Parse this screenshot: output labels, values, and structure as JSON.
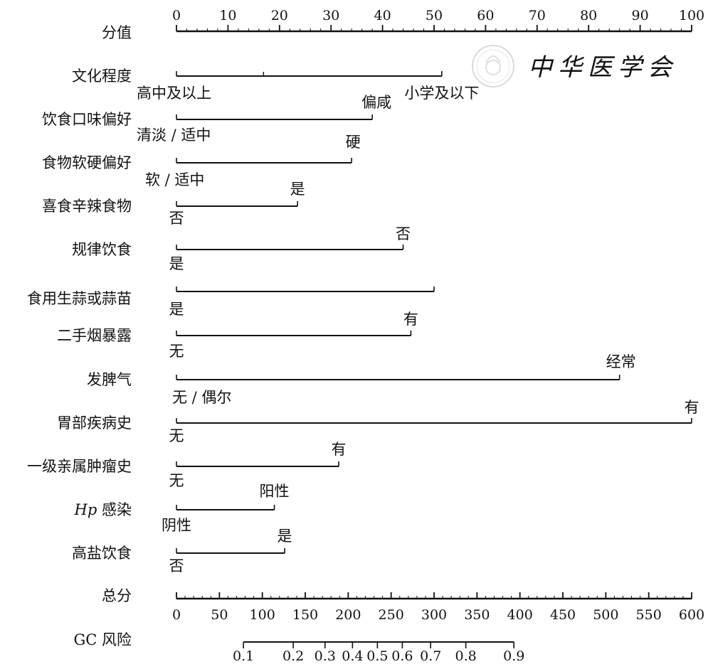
{
  "chart_data": {
    "type": "nomogram",
    "points_scale": {
      "label": "分值",
      "min": 0,
      "max": 100,
      "ticks": [
        0,
        10,
        20,
        30,
        40,
        50,
        60,
        70,
        80,
        90,
        100
      ]
    },
    "predictors": [
      {
        "name": "文化程度",
        "levels": [
          {
            "label": "高中及以上",
            "points": 0
          },
          {
            "label": "小学及以下",
            "points": 51.5
          }
        ],
        "midpoint_tick": 16.9
      },
      {
        "name": "饮食口味偏好",
        "levels": [
          {
            "label": "清淡 / 适中",
            "points": 0
          },
          {
            "label": "偏咸",
            "points": 38
          }
        ]
      },
      {
        "name": "食物软硬偏好",
        "levels": [
          {
            "label": "软 / 适中",
            "points": 0
          },
          {
            "label": "硬",
            "points": 34
          }
        ]
      },
      {
        "name": "喜食辛辣食物",
        "levels": [
          {
            "label": "否",
            "points": 0
          },
          {
            "label": "是",
            "points": 23.5
          }
        ]
      },
      {
        "name": "规律饮食",
        "levels": [
          {
            "label": "是",
            "points": 0
          },
          {
            "label": "否",
            "points": 44
          }
        ]
      },
      {
        "name": "食用生蒜或蒜苗",
        "levels": [
          {
            "label": "是",
            "points": 0
          },
          {
            "label": "",
            "points": 50
          }
        ]
      },
      {
        "name": "二手烟暴露",
        "levels": [
          {
            "label": "无",
            "points": 0
          },
          {
            "label": "有",
            "points": 45.5
          }
        ]
      },
      {
        "name": "发脾气",
        "levels": [
          {
            "label": "无 / 偶尔",
            "points": 0
          },
          {
            "label": "经常",
            "points": 86
          }
        ]
      },
      {
        "name": "胃部疾病史",
        "levels": [
          {
            "label": "无",
            "points": 0
          },
          {
            "label": "有",
            "points": 100
          }
        ]
      },
      {
        "name": "一级亲属肿瘤史",
        "levels": [
          {
            "label": "无",
            "points": 0
          },
          {
            "label": "有",
            "points": 31.5
          }
        ]
      },
      {
        "name": "Hp 感染",
        "italic_part": "Hp",
        "levels": [
          {
            "label": "阴性",
            "points": 0
          },
          {
            "label": "阳性",
            "points": 19
          }
        ]
      },
      {
        "name": "高盐饮食",
        "levels": [
          {
            "label": "否",
            "points": 0
          },
          {
            "label": "是",
            "points": 21
          }
        ]
      }
    ],
    "total_points_scale": {
      "label": "总分",
      "min": 0,
      "max": 600,
      "ticks": [
        0,
        50,
        100,
        150,
        200,
        250,
        300,
        350,
        400,
        450,
        500,
        550,
        600
      ]
    },
    "risk_scale": {
      "label": "GC 风险",
      "ticks": [
        {
          "label": "0.1",
          "total_points": 78
        },
        {
          "label": "0.2",
          "total_points": 136
        },
        {
          "label": "0.3",
          "total_points": 173
        },
        {
          "label": "0.4",
          "total_points": 205
        },
        {
          "label": "0.5",
          "total_points": 234
        },
        {
          "label": "0.6",
          "total_points": 263
        },
        {
          "label": "0.7",
          "total_points": 296
        },
        {
          "label": "0.8",
          "total_points": 337
        },
        {
          "label": "0.9",
          "total_points": 393
        }
      ]
    },
    "colors": {
      "ink": "#111111",
      "watermark": "#c8c8c8"
    }
  },
  "watermark": {
    "text": "中华医学会"
  }
}
